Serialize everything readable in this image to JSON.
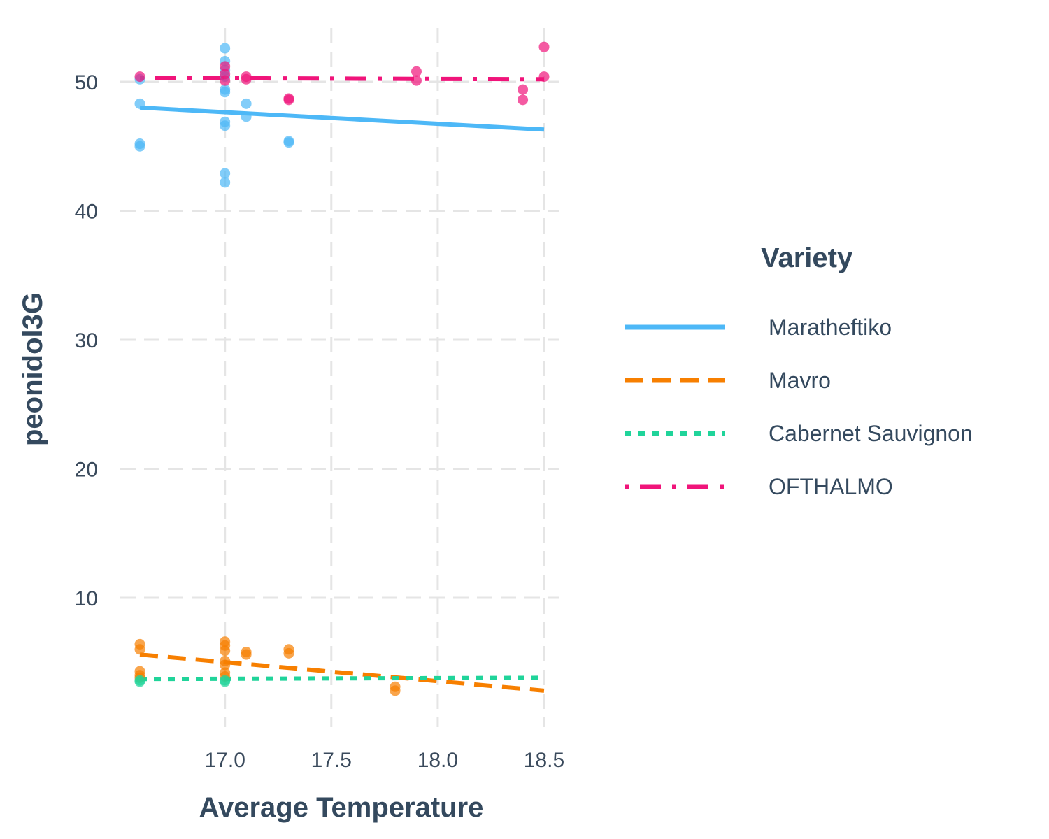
{
  "chart_data": {
    "type": "scatter",
    "title": "",
    "xlabel": "Average Temperature",
    "ylabel": "peonidol3G",
    "xlim": [
      16.55,
      18.58
    ],
    "ylim": [
      0,
      55
    ],
    "x_ticks": [
      17.0,
      17.5,
      18.0,
      18.5
    ],
    "x_tick_labels": [
      "17.0",
      "17.5",
      "18.0",
      "18.5"
    ],
    "y_ticks": [
      10,
      20,
      30,
      40,
      50
    ],
    "y_tick_labels": [
      "10",
      "20",
      "30",
      "40",
      "50"
    ],
    "grid": true,
    "legend": {
      "title": "Variety",
      "position": "right"
    },
    "series": [
      {
        "name": "Maratheftiko",
        "color": "#4db8f7",
        "line_style": "solid",
        "points": [
          [
            16.6,
            48.3
          ],
          [
            16.6,
            45.2
          ],
          [
            16.6,
            45.0
          ],
          [
            16.6,
            50.2
          ],
          [
            17.0,
            52.6
          ],
          [
            17.0,
            51.6
          ],
          [
            17.0,
            50.9
          ],
          [
            17.0,
            50.4
          ],
          [
            17.0,
            49.4
          ],
          [
            17.0,
            49.2
          ],
          [
            17.0,
            46.9
          ],
          [
            17.0,
            46.6
          ],
          [
            17.0,
            42.9
          ],
          [
            17.0,
            42.2
          ],
          [
            17.1,
            48.3
          ],
          [
            17.1,
            47.3
          ],
          [
            17.3,
            45.4
          ],
          [
            17.3,
            45.3
          ]
        ],
        "fit": [
          [
            16.6,
            48.0
          ],
          [
            18.5,
            46.3
          ]
        ]
      },
      {
        "name": "Mavro",
        "color": "#f77f00",
        "line_style": "dashed",
        "points": [
          [
            16.6,
            6.4
          ],
          [
            16.6,
            6.0
          ],
          [
            16.6,
            4.3
          ],
          [
            16.6,
            4.0
          ],
          [
            16.6,
            3.8
          ],
          [
            17.0,
            6.6
          ],
          [
            17.0,
            6.3
          ],
          [
            17.0,
            5.9
          ],
          [
            17.0,
            5.1
          ],
          [
            17.0,
            4.8
          ],
          [
            17.0,
            4.2
          ],
          [
            17.0,
            3.9
          ],
          [
            17.1,
            5.8
          ],
          [
            17.1,
            5.6
          ],
          [
            17.3,
            6.0
          ],
          [
            17.3,
            5.7
          ],
          [
            17.8,
            3.1
          ],
          [
            17.8,
            2.8
          ]
        ],
        "fit": [
          [
            16.6,
            5.6
          ],
          [
            18.5,
            2.8
          ]
        ]
      },
      {
        "name": "Cabernet Sauvignon",
        "color": "#20d49a",
        "line_style": "dotted",
        "points": [
          [
            16.6,
            3.5
          ],
          [
            16.6,
            3.6
          ],
          [
            17.0,
            3.6
          ],
          [
            17.0,
            3.5
          ]
        ],
        "fit": [
          [
            16.6,
            3.7
          ],
          [
            18.5,
            3.8
          ]
        ]
      },
      {
        "name": "OFTHALMO",
        "color": "#f0147a",
        "line_style": "dotdash",
        "points": [
          [
            16.6,
            50.4
          ],
          [
            17.0,
            51.2
          ],
          [
            17.0,
            50.6
          ],
          [
            17.0,
            50.1
          ],
          [
            17.1,
            50.4
          ],
          [
            17.1,
            50.2
          ],
          [
            17.3,
            48.7
          ],
          [
            17.3,
            48.6
          ],
          [
            17.9,
            50.8
          ],
          [
            17.9,
            50.1
          ],
          [
            18.4,
            49.4
          ],
          [
            18.4,
            48.6
          ],
          [
            18.5,
            52.7
          ],
          [
            18.5,
            50.4
          ]
        ],
        "fit": [
          [
            16.6,
            50.3
          ],
          [
            18.5,
            50.2
          ]
        ]
      }
    ]
  }
}
